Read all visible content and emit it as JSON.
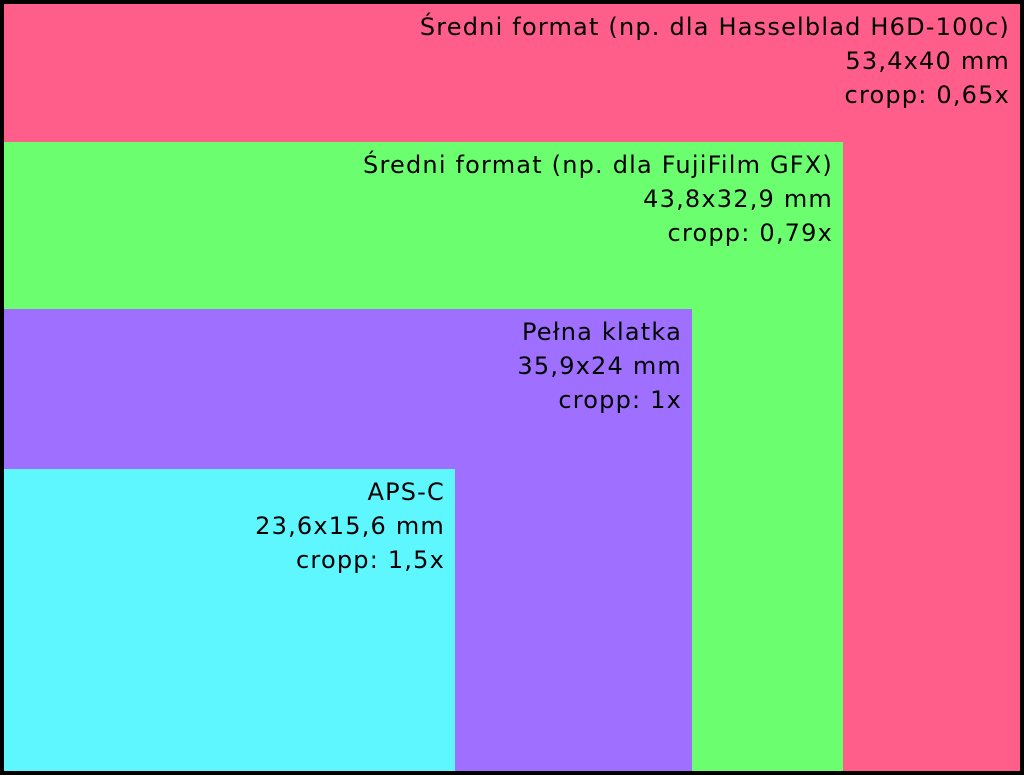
{
  "sensors": [
    {
      "id": "hasselblad",
      "name": "Średni format (np. dla Hasselblad H6D-100c)",
      "size": "53,4x40 mm",
      "crop": "cropp: 0,65x",
      "color": "#ff5e8b"
    },
    {
      "id": "fujifilm",
      "name": "Średni format (np. dla FujiFilm GFX)",
      "size": "43,8x32,9 mm",
      "crop": "cropp: 0,79x",
      "color": "#6bff6f"
    },
    {
      "id": "fullframe",
      "name": "Pełna klatka",
      "size": "35,9x24 mm",
      "crop": "cropp: 1x",
      "color": "#9f6fff"
    },
    {
      "id": "apsc",
      "name": "APS-C",
      "size": "23,6x15,6 mm",
      "crop": "cropp: 1,5x",
      "color": "#5ef6ff"
    }
  ]
}
